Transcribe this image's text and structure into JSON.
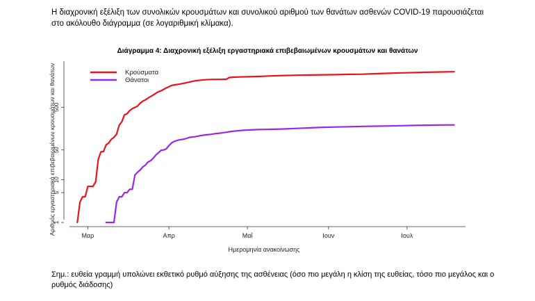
{
  "intro_text": "Η διαχρονική εξέλιξη των συνολικών κρουσμάτων και συνολικού αριθμού των θανάτων ασθενών COVID-19 παρουσιάζεται στο ακόλουθο διάγραμμα (σε λογαριθμική κλίμακα).",
  "footnote_text": "Σημ.: ευθεία γραμμή υπολώνει εκθετικό ρυθμό αύξησης της ασθένειας (όσο πιο μεγάλη η κλίση της ευθείας, τόσο πιο μεγάλος και ο ρυθμός διάδοσης)",
  "chart_data": {
    "type": "line",
    "title": "Διάγραμμα 4: Διαχρονική εξέλιξη εργαστηριακά επιβεβαιωμένων κρουσμάτων και θανάτων",
    "xlabel": "Ημερομηνία ανακοίνωσης",
    "ylabel": "Αριθμός εργαστηριακά επιβεβαιωμένων κρουσμάτων και θανάτων",
    "y_scale": "log",
    "ylim": [
      0.8,
      6000
    ],
    "xlim_days": [
      -7,
      147
    ],
    "x_ticks": [
      {
        "label": "Μαρ",
        "day": 0
      },
      {
        "label": "Απρ",
        "day": 31
      },
      {
        "label": "Μαΐ",
        "day": 61
      },
      {
        "label": "Ιουν",
        "day": 92
      },
      {
        "label": "Ιουλ",
        "day": 122
      }
    ],
    "y_ticks": [
      1,
      5,
      10,
      50,
      500
    ],
    "y_tick_labels": [
      "1",
      "5",
      "10",
      "50",
      "500"
    ],
    "day_zero": "2020-03-01",
    "legend": [
      "Κρούσματα",
      "Θάνατοι"
    ],
    "series": [
      {
        "name": "Κρούσματα",
        "color": "#e8141c",
        "points": [
          [
            -4,
            1
          ],
          [
            -3,
            3
          ],
          [
            -2,
            4
          ],
          [
            -1,
            4
          ],
          [
            0,
            7
          ],
          [
            1,
            7
          ],
          [
            2,
            7
          ],
          [
            3,
            9
          ],
          [
            4,
            30
          ],
          [
            5,
            45
          ],
          [
            6,
            46
          ],
          [
            7,
            66
          ],
          [
            8,
            73
          ],
          [
            9,
            89
          ],
          [
            10,
            99
          ],
          [
            11,
            117
          ],
          [
            12,
            190
          ],
          [
            13,
            228
          ],
          [
            14,
            331
          ],
          [
            15,
            352
          ],
          [
            16,
            418
          ],
          [
            17,
            464
          ],
          [
            18,
            495
          ],
          [
            19,
            530
          ],
          [
            20,
            624
          ],
          [
            21,
            695
          ],
          [
            22,
            743
          ],
          [
            23,
            821
          ],
          [
            24,
            892
          ],
          [
            25,
            966
          ],
          [
            26,
            1061
          ],
          [
            27,
            1156
          ],
          [
            28,
            1212
          ],
          [
            29,
            1314
          ],
          [
            30,
            1415
          ],
          [
            31,
            1514
          ],
          [
            32,
            1613
          ],
          [
            33,
            1673
          ],
          [
            35,
            1735
          ],
          [
            37,
            1832
          ],
          [
            39,
            1955
          ],
          [
            41,
            2081
          ],
          [
            43,
            2145
          ],
          [
            45,
            2207
          ],
          [
            47,
            2235
          ],
          [
            49,
            2245
          ],
          [
            51,
            2245
          ],
          [
            53,
            2267
          ],
          [
            54,
            2490
          ],
          [
            56,
            2534
          ],
          [
            58,
            2566
          ],
          [
            61,
            2591
          ],
          [
            65,
            2632
          ],
          [
            70,
            2710
          ],
          [
            75,
            2770
          ],
          [
            80,
            2810
          ],
          [
            85,
            2850
          ],
          [
            90,
            2876
          ],
          [
            95,
            2900
          ],
          [
            100,
            2950
          ],
          [
            105,
            2980
          ],
          [
            110,
            3050
          ],
          [
            115,
            3120
          ],
          [
            120,
            3200
          ],
          [
            125,
            3250
          ],
          [
            130,
            3300
          ],
          [
            135,
            3350
          ],
          [
            140,
            3400
          ]
        ]
      },
      {
        "name": "Θάνατοι",
        "color": "#9b27e6",
        "points": [
          [
            7,
            1
          ],
          [
            8,
            1
          ],
          [
            9,
            1
          ],
          [
            10,
            1
          ],
          [
            11,
            3
          ],
          [
            12,
            4
          ],
          [
            13,
            4
          ],
          [
            14,
            5
          ],
          [
            15,
            5
          ],
          [
            16,
            6
          ],
          [
            17,
            6
          ],
          [
            18,
            13
          ],
          [
            19,
            15
          ],
          [
            20,
            17
          ],
          [
            21,
            20
          ],
          [
            22,
            22
          ],
          [
            23,
            26
          ],
          [
            24,
            28
          ],
          [
            25,
            32
          ],
          [
            26,
            38
          ],
          [
            27,
            43
          ],
          [
            28,
            49
          ],
          [
            29,
            50
          ],
          [
            30,
            53
          ],
          [
            31,
            63
          ],
          [
            32,
            73
          ],
          [
            33,
            79
          ],
          [
            34,
            83
          ],
          [
            35,
            86
          ],
          [
            37,
            90
          ],
          [
            39,
            99
          ],
          [
            41,
            102
          ],
          [
            43,
            108
          ],
          [
            45,
            113
          ],
          [
            47,
            116
          ],
          [
            49,
            121
          ],
          [
            51,
            125
          ],
          [
            53,
            130
          ],
          [
            55,
            136
          ],
          [
            57,
            140
          ],
          [
            59,
            144
          ],
          [
            61,
            146
          ],
          [
            65,
            150
          ],
          [
            70,
            152
          ],
          [
            75,
            155
          ],
          [
            80,
            160
          ],
          [
            85,
            165
          ],
          [
            90,
            170
          ],
          [
            95,
            172
          ],
          [
            100,
            175
          ],
          [
            105,
            178
          ],
          [
            110,
            180
          ],
          [
            115,
            182
          ],
          [
            120,
            185
          ],
          [
            125,
            188
          ],
          [
            130,
            190
          ],
          [
            135,
            192
          ],
          [
            140,
            193
          ]
        ]
      }
    ]
  }
}
